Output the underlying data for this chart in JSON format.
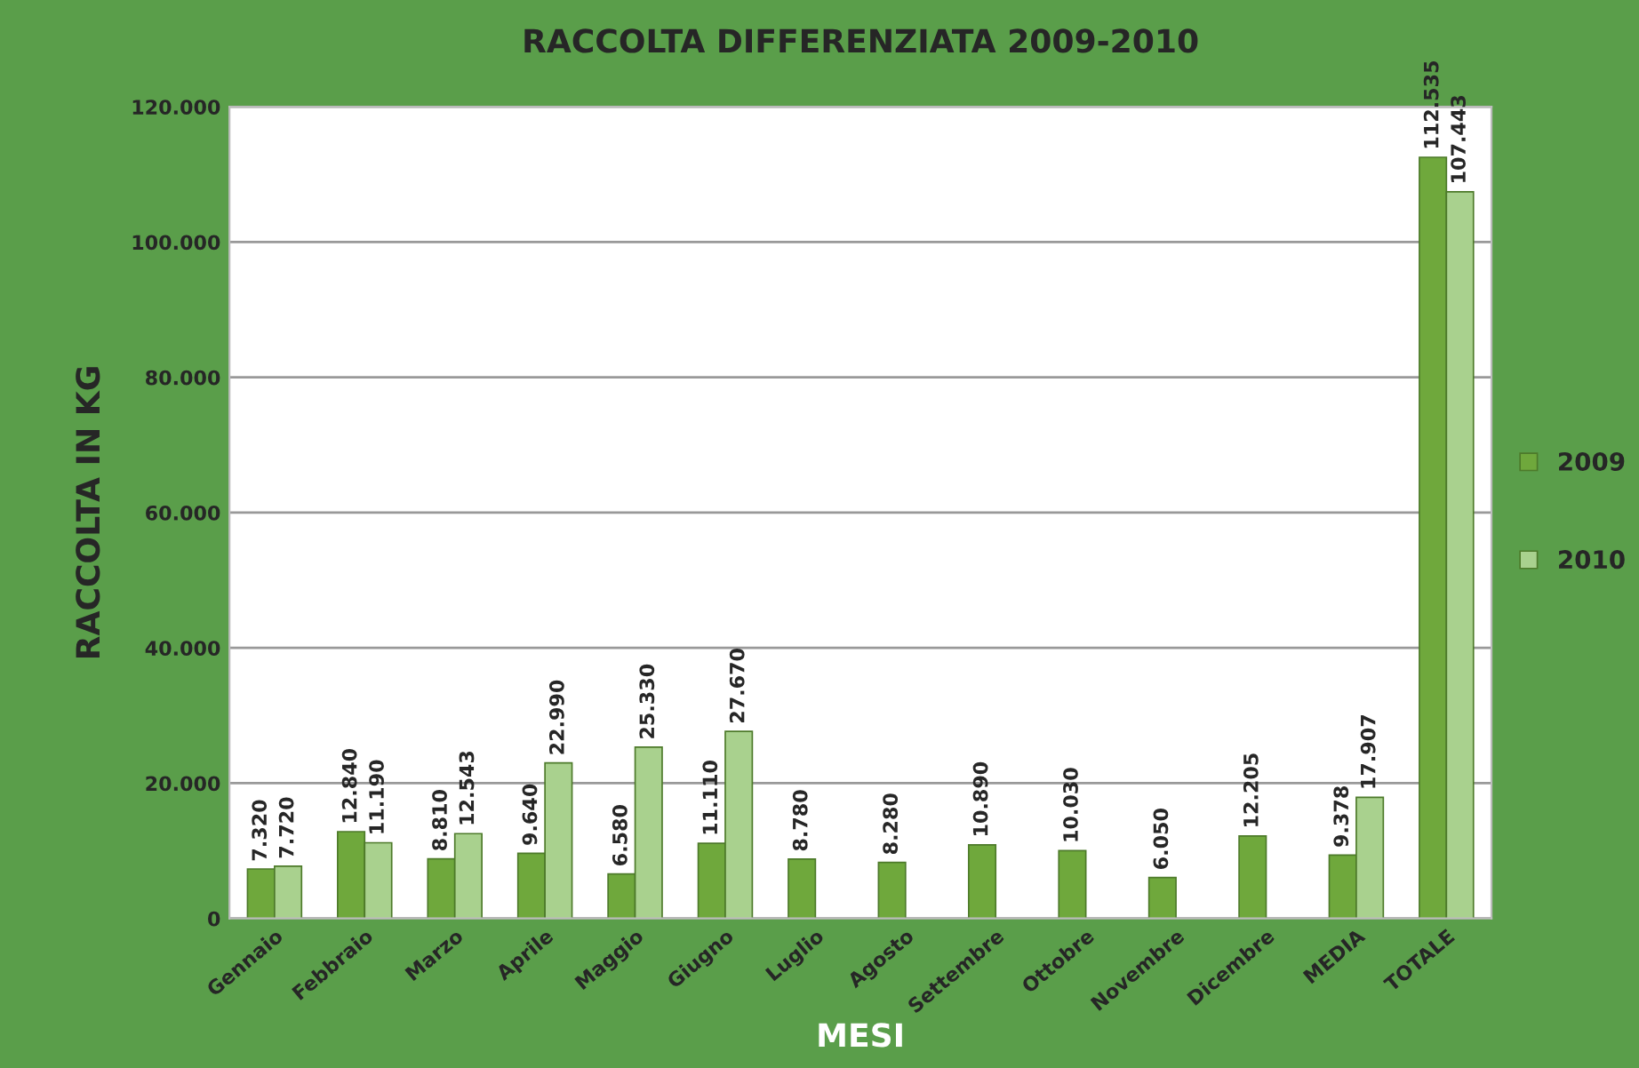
{
  "chart_data": {
    "type": "bar",
    "title": "RACCOLTA DIFFERENZIATA 2009-2010",
    "xlabel": "MESI",
    "ylabel": "RACCOLTA IN KG",
    "categories": [
      "Gennaio",
      "Febbraio",
      "Marzo",
      "Aprile",
      "Maggio",
      "Giugno",
      "Luglio",
      "Agosto",
      "Settembre",
      "Ottobre",
      "Novembre",
      "Dicembre",
      "MEDIA",
      "TOTALE"
    ],
    "series": [
      {
        "name": "2009",
        "color": "#6fa83c",
        "values": [
          7320,
          12840,
          8810,
          9640,
          6580,
          11110,
          8780,
          8280,
          10890,
          10030,
          6050,
          12205,
          9378,
          112535
        ],
        "value_labels": [
          "7.320",
          "12.840",
          "8.810",
          "9.640",
          "6.580",
          "11.110",
          "8.780",
          "8.280",
          "10.890",
          "10.030",
          "6.050",
          "12.205",
          "9.378",
          "112.535"
        ]
      },
      {
        "name": "2010",
        "color": "#a9d18e",
        "values": [
          7720,
          11190,
          12543,
          22990,
          25330,
          27670,
          null,
          null,
          null,
          null,
          null,
          null,
          17907,
          107443
        ],
        "value_labels": [
          "7.720",
          "11.190",
          "12.543",
          "22.990",
          "25.330",
          "27.670",
          null,
          null,
          null,
          null,
          null,
          null,
          "17.907",
          "107.443"
        ]
      }
    ],
    "ylim": [
      0,
      120000
    ],
    "yticks": [
      {
        "value": 0,
        "label": "0"
      },
      {
        "value": 20000,
        "label": "20.000"
      },
      {
        "value": 40000,
        "label": "40.000"
      },
      {
        "value": 60000,
        "label": "60.000"
      },
      {
        "value": 80000,
        "label": "80.000"
      },
      {
        "value": 100000,
        "label": "100.000"
      },
      {
        "value": 120000,
        "label": "120.000"
      }
    ],
    "grid": "y",
    "legend": "right"
  }
}
